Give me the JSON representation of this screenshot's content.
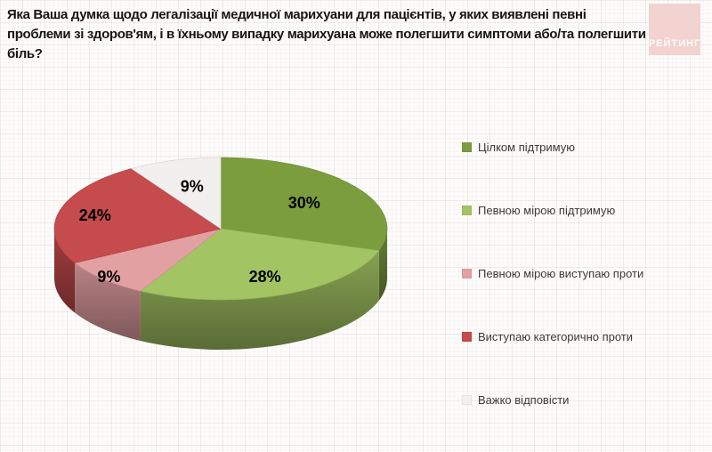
{
  "title": "Яка Ваша думка щодо легалізації медичної марихуани для пацієнтів, у яких виявлені певні проблеми зі здоров'ям, і в їхньому випадку марихуана може полегшити симптоми або/та полегшити біль?",
  "logo": {
    "text": "РЕЙТИНГ",
    "bg_color": "#f2d3cf",
    "text_color": "#ffffff"
  },
  "chart_data": {
    "type": "pie",
    "effect": "3d",
    "start_angle_deg": -90,
    "direction": "clockwise",
    "legend_position": "right",
    "units": "percent",
    "slices": [
      {
        "label": "Цілком підтримую",
        "value": 30,
        "display": "30%",
        "color": "#7b9d3e"
      },
      {
        "label": "Певною мірою підтримую",
        "value": 28,
        "display": "28%",
        "color": "#a3c463"
      },
      {
        "label": "Певною мірою виступаю проти",
        "value": 9,
        "display": "9%",
        "color": "#e3a0a3"
      },
      {
        "label": "Виступаю категорично проти",
        "value": 24,
        "display": "24%",
        "color": "#c54b4c"
      },
      {
        "label": "Важко відповісти",
        "value": 9,
        "display": "9%",
        "color": "#f2f0ee"
      }
    ]
  }
}
